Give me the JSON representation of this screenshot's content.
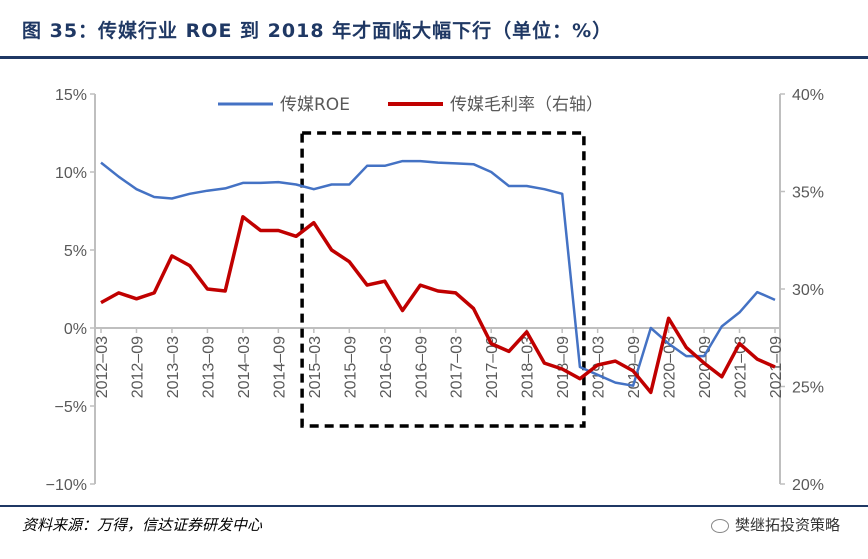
{
  "title": "图 35：传媒行业 ROE 到 2018 年才面临大幅下行（单位：%）",
  "source": "资料来源：万得，信达证券研发中心",
  "brand": "樊继拓投资策略",
  "chart_data": {
    "type": "line",
    "title": "传媒行业 ROE 到 2018 年才面临大幅下行（单位：%）",
    "x": [
      "2012-03",
      "2012-06",
      "2012-09",
      "2012-12",
      "2013-03",
      "2013-06",
      "2013-09",
      "2013-12",
      "2014-03",
      "2014-06",
      "2014-09",
      "2014-12",
      "2015-03",
      "2015-06",
      "2015-09",
      "2015-12",
      "2016-03",
      "2016-06",
      "2016-09",
      "2016-12",
      "2017-03",
      "2017-06",
      "2017-09",
      "2017-12",
      "2018-03",
      "2018-06",
      "2018-09",
      "2018-12",
      "2019-03",
      "2019-06",
      "2019-09",
      "2019-12",
      "2020-03",
      "2020-06",
      "2020-09",
      "2020-12",
      "2021-03",
      "2021-06",
      "2021-09"
    ],
    "xtick_labels": [
      "2012-03",
      "2012-09",
      "2013-03",
      "2013-09",
      "2014-03",
      "2014-09",
      "2015-03",
      "2015-09",
      "2016-03",
      "2016-09",
      "2017-03",
      "2017-09",
      "2018-03",
      "2018-09",
      "2019-03",
      "2019-09",
      "2020-03",
      "2020-09",
      "2021-03",
      "2021-09"
    ],
    "series": [
      {
        "name": "传媒ROE",
        "axis": "left",
        "color": "#4472c4",
        "values": [
          10.6,
          9.7,
          8.9,
          8.4,
          8.3,
          8.6,
          8.8,
          8.95,
          9.3,
          9.3,
          9.35,
          9.2,
          8.9,
          9.2,
          9.2,
          10.4,
          10.4,
          10.7,
          10.7,
          10.6,
          10.55,
          10.5,
          10.0,
          9.1,
          9.1,
          8.9,
          8.6,
          -2.5,
          -3.0,
          -3.5,
          -3.7,
          0.0,
          -1.0,
          -1.8,
          -1.8,
          0.1,
          1.0,
          2.3,
          1.8
        ]
      },
      {
        "name": "传媒毛利率（右轴）",
        "axis": "right",
        "color": "#c00000",
        "values": [
          29.3,
          29.8,
          29.5,
          29.8,
          31.7,
          31.2,
          30.0,
          29.9,
          33.7,
          33.0,
          33.0,
          32.7,
          33.4,
          32.0,
          31.4,
          30.2,
          30.4,
          28.9,
          30.2,
          29.9,
          29.8,
          29.0,
          27.2,
          26.8,
          27.8,
          26.2,
          25.9,
          25.4,
          26.1,
          26.3,
          25.8,
          24.7,
          28.5,
          27.0,
          26.2,
          25.5,
          27.2,
          26.4,
          26.0
        ]
      }
    ],
    "left_axis": {
      "ylim": [
        -10,
        15
      ],
      "ticks": [
        "15%",
        "10%",
        "5%",
        "0%",
        "−5%",
        "−10%"
      ],
      "values": [
        15,
        10,
        5,
        0,
        -5,
        -10
      ]
    },
    "right_axis": {
      "ylim": [
        20,
        40
      ],
      "ticks": [
        "40%",
        "35%",
        "30%",
        "25%",
        "20%"
      ],
      "values": [
        40,
        35,
        30,
        25,
        20
      ]
    },
    "highlight_range": [
      "2014-12",
      "2018-12"
    ],
    "legend": "top-center",
    "grid": false
  }
}
